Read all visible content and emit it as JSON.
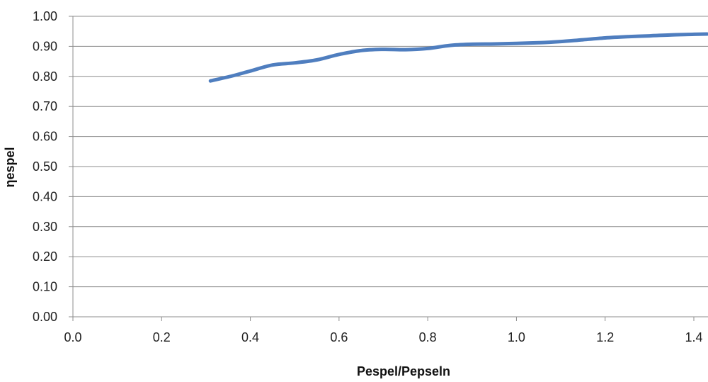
{
  "chart_data": {
    "type": "line",
    "title": "",
    "xlabel": "Pespel/Pepseln",
    "ylabel": "ηespel",
    "xlim": [
      0,
      1.4
    ],
    "ylim": [
      0,
      1.0
    ],
    "x_ticks": [
      "0.0",
      "0.2",
      "0.4",
      "0.6",
      "0.8",
      "1.0",
      "1.2",
      "1.4"
    ],
    "y_ticks": [
      "0.00",
      "0.10",
      "0.20",
      "0.30",
      "0.40",
      "0.50",
      "0.60",
      "0.70",
      "0.80",
      "0.90",
      "1.00"
    ],
    "grid": "horizontal",
    "legend": "none",
    "series": [
      {
        "color": "#4f7ebf",
        "x": [
          0.31,
          0.36,
          0.4,
          0.45,
          0.5,
          0.55,
          0.6,
          0.65,
          0.7,
          0.75,
          0.8,
          0.85,
          0.9,
          0.95,
          1.0,
          1.05,
          1.1,
          1.15,
          1.2,
          1.25,
          1.3,
          1.35,
          1.4,
          1.43
        ],
        "y": [
          0.785,
          0.802,
          0.818,
          0.838,
          0.845,
          0.855,
          0.873,
          0.886,
          0.89,
          0.889,
          0.893,
          0.903,
          0.907,
          0.908,
          0.91,
          0.912,
          0.916,
          0.922,
          0.928,
          0.932,
          0.935,
          0.938,
          0.94,
          0.941
        ]
      }
    ]
  }
}
